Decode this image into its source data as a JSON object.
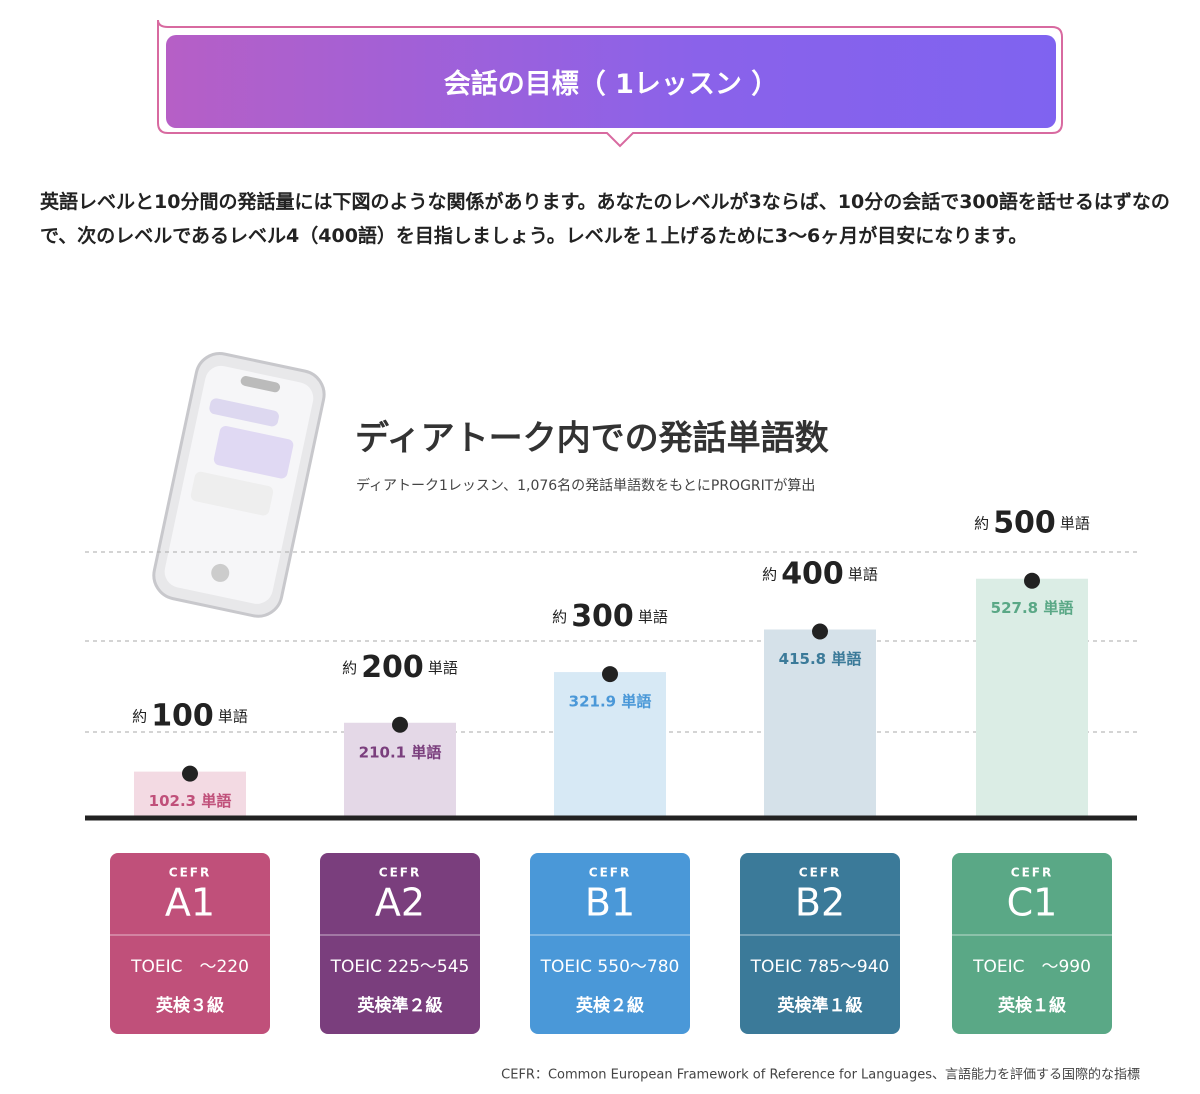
{
  "header": {
    "title": "会話の目標（ 1レッスン ）"
  },
  "intro": "英語レベルと10分間の発話量には下図のような関係があります。あなたのレベルが3ならば、10分の会話で300語を話せるはずなので、次のレベルであるレベル4（400語）を目指しましょう。レベルを１上げるために3〜6ヶ月が目安になります。",
  "chart_data": {
    "type": "bar",
    "title": "ディアトーク内での発話単語数",
    "subtitle": "ディアトーク1レッスン、1,076名の発話単語数をもとにPROGRITが算出",
    "categories": [
      "A1",
      "A2",
      "B1",
      "B2",
      "C1"
    ],
    "values": [
      102.3,
      210.1,
      321.9,
      415.8,
      527.8
    ],
    "value_labels": [
      "102.3 単語",
      "210.1 単語",
      "321.9 単語",
      "415.8 単語",
      "527.8 単語"
    ],
    "colors": [
      "#c0507a",
      "#7a3e7d",
      "#4a98d8",
      "#3b7a99",
      "#5aa886"
    ],
    "bar_colors": [
      "#f3dae3",
      "#e4d8e7",
      "#d7e9f5",
      "#d5e1e9",
      "#dbede5"
    ],
    "target_prefix": "約",
    "target_values": [
      100,
      200,
      300,
      400,
      500
    ],
    "target_unit": "単語",
    "ylim": [
      0,
      600
    ],
    "cefr_label": "CEFR",
    "toeic": [
      "TOEIC　～220",
      "TOEIC 225～545",
      "TOEIC 550～780",
      "TOEIC 785～940",
      "TOEIC　～990"
    ],
    "eiken": [
      "英検３級",
      "英検準２級",
      "英検２級",
      "英検準１級",
      "英検１級"
    ],
    "footnote": "CEFR：Common European Framework of Reference for Languages、言語能力を評価する国際的な指標"
  }
}
